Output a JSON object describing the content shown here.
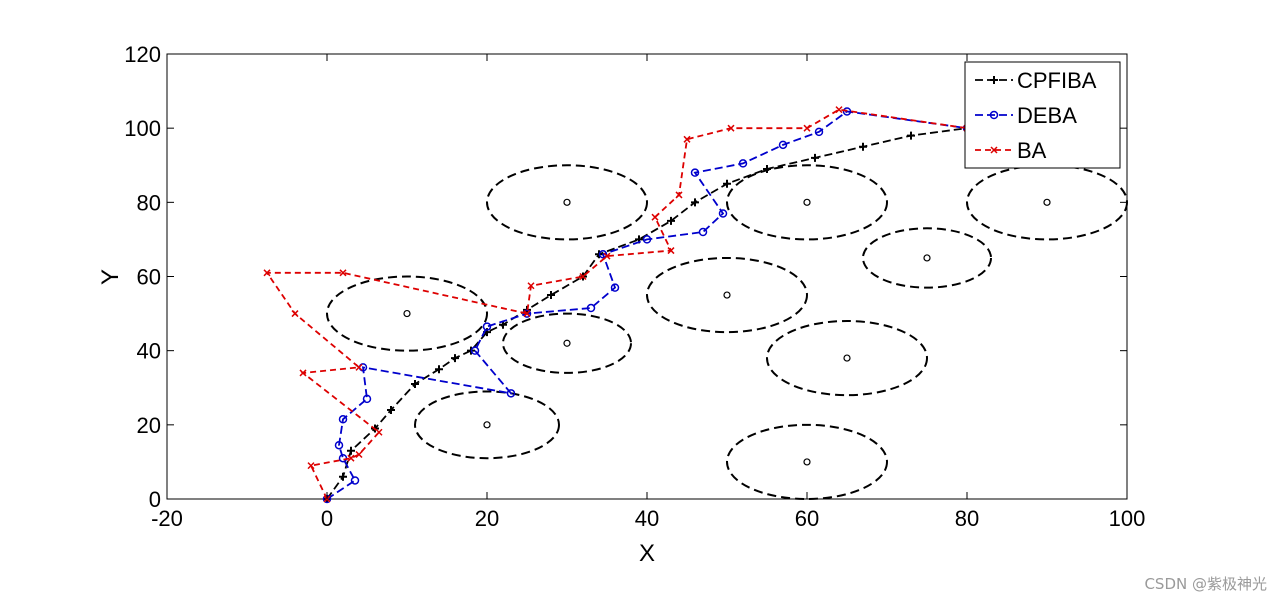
{
  "chart_data": {
    "type": "line",
    "xlabel": "X",
    "ylabel": "Y",
    "xlim": [
      -20,
      100
    ],
    "ylim": [
      0,
      120
    ],
    "xticks": [
      -20,
      0,
      20,
      40,
      60,
      80,
      100
    ],
    "yticks": [
      0,
      20,
      40,
      60,
      80,
      100,
      120
    ],
    "grid": false,
    "legend_position": "top-right",
    "series": [
      {
        "name": "CPFIBA",
        "color": "#000000",
        "marker": "plus",
        "points": [
          [
            0,
            0
          ],
          [
            2,
            6
          ],
          [
            3,
            13
          ],
          [
            6,
            19
          ],
          [
            8,
            24
          ],
          [
            11,
            31
          ],
          [
            14,
            35
          ],
          [
            16,
            38
          ],
          [
            18,
            40
          ],
          [
            20,
            45
          ],
          [
            22,
            47
          ],
          [
            25,
            51
          ],
          [
            28,
            55
          ],
          [
            32,
            60
          ],
          [
            34,
            66
          ],
          [
            39,
            70
          ],
          [
            43,
            75
          ],
          [
            46,
            80
          ],
          [
            50,
            85
          ],
          [
            55,
            89
          ],
          [
            61,
            92
          ],
          [
            67,
            95
          ],
          [
            73,
            98
          ],
          [
            80,
            100
          ]
        ]
      },
      {
        "name": "DEBA",
        "color": "#0000cc",
        "marker": "circle",
        "points": [
          [
            0,
            0
          ],
          [
            3.5,
            5
          ],
          [
            2,
            11
          ],
          [
            1.5,
            14.5
          ],
          [
            2,
            21.5
          ],
          [
            5,
            27
          ],
          [
            4.5,
            35.5
          ],
          [
            23,
            28.5
          ],
          [
            18.5,
            40
          ],
          [
            20,
            46.5
          ],
          [
            25,
            50
          ],
          [
            33,
            51.5
          ],
          [
            36,
            57
          ],
          [
            34.5,
            66
          ],
          [
            40,
            70
          ],
          [
            47,
            72
          ],
          [
            49.5,
            77
          ],
          [
            46,
            88
          ],
          [
            52,
            90.5
          ],
          [
            57,
            95.5
          ],
          [
            61.5,
            99
          ],
          [
            65,
            104.5
          ],
          [
            80,
            100
          ]
        ]
      },
      {
        "name": "BA",
        "color": "#dd0000",
        "marker": "x",
        "points": [
          [
            0,
            0
          ],
          [
            -2,
            9
          ],
          [
            3,
            11
          ],
          [
            4,
            12
          ],
          [
            6.5,
            18
          ],
          [
            -3,
            34
          ],
          [
            4,
            35.5
          ],
          [
            -4,
            50
          ],
          [
            -7.5,
            61
          ],
          [
            2,
            61
          ],
          [
            25,
            50
          ],
          [
            25.5,
            57.5
          ],
          [
            32,
            60
          ],
          [
            35,
            65.5
          ],
          [
            43,
            67
          ],
          [
            41,
            76
          ],
          [
            44,
            82
          ],
          [
            45,
            97
          ],
          [
            50.5,
            100
          ],
          [
            60,
            100
          ],
          [
            64,
            105
          ],
          [
            80,
            100
          ]
        ]
      }
    ],
    "obstacles": [
      {
        "cx": 10,
        "cy": 50,
        "rx": 10,
        "ry": 10
      },
      {
        "cx": 20,
        "cy": 20,
        "rx": 9,
        "ry": 9
      },
      {
        "cx": 30,
        "cy": 80,
        "rx": 10,
        "ry": 10
      },
      {
        "cx": 30,
        "cy": 42,
        "rx": 8,
        "ry": 8
      },
      {
        "cx": 50,
        "cy": 55,
        "rx": 10,
        "ry": 10
      },
      {
        "cx": 60,
        "cy": 80,
        "rx": 10,
        "ry": 10
      },
      {
        "cx": 60,
        "cy": 10,
        "rx": 10,
        "ry": 10
      },
      {
        "cx": 65,
        "cy": 38,
        "rx": 10,
        "ry": 10
      },
      {
        "cx": 75,
        "cy": 65,
        "rx": 8,
        "ry": 8
      },
      {
        "cx": 90,
        "cy": 80,
        "rx": 10,
        "ry": 10
      }
    ]
  },
  "watermark": "CSDN @紫极神光"
}
